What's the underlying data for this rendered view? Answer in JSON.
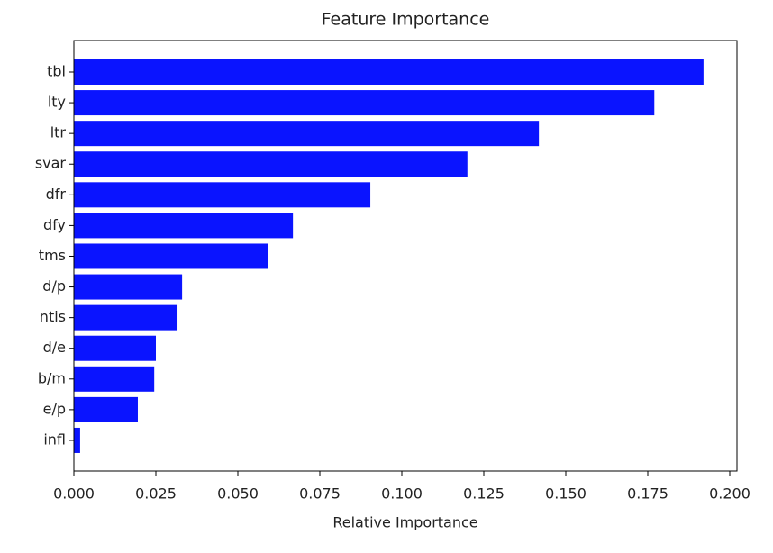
{
  "chart_data": {
    "type": "barh",
    "title": "Feature Importance",
    "x_label": "Relative Importance",
    "categories": [
      "tbl",
      "lty",
      "ltr",
      "svar",
      "dfr",
      "dfy",
      "tms",
      "d/p",
      "ntis",
      "d/e",
      "b/m",
      "e/p",
      "infl"
    ],
    "values": [
      0.192,
      0.177,
      0.1418,
      0.12,
      0.0904,
      0.0668,
      0.0591,
      0.033,
      0.0316,
      0.025,
      0.0245,
      0.0195,
      0.0019
    ],
    "color": "#0a14ff",
    "xlim": [
      0,
      0.2022
    ],
    "xticks": [
      {
        "value": 0,
        "label": "0.000"
      },
      {
        "value": 0.025,
        "label": "0.025"
      },
      {
        "value": 0.05,
        "label": "0.050"
      },
      {
        "value": 0.075,
        "label": "0.075"
      },
      {
        "value": 0.1,
        "label": "0.100"
      },
      {
        "value": 0.125,
        "label": "0.125"
      },
      {
        "value": 0.15,
        "label": "0.150"
      },
      {
        "value": 0.175,
        "label": "0.175"
      },
      {
        "value": 0.2,
        "label": "0.200"
      }
    ],
    "grid": false
  }
}
